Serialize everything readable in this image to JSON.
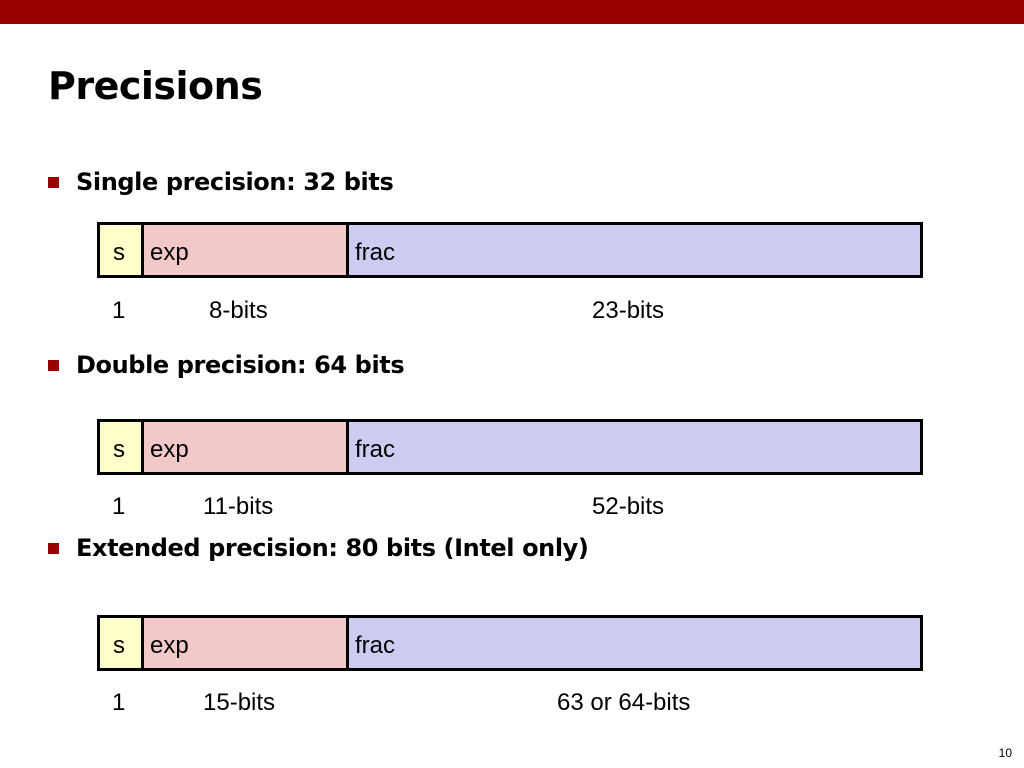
{
  "title": "Precisions",
  "sections": [
    {
      "heading": "Single precision: 32 bits",
      "fields": {
        "s": "s",
        "exp": "exp",
        "frac": "frac"
      },
      "widths": {
        "s": "1",
        "exp": "8-bits",
        "frac": "23-bits"
      }
    },
    {
      "heading": "Double precision: 64 bits",
      "fields": {
        "s": "s",
        "exp": "exp",
        "frac": "frac"
      },
      "widths": {
        "s": "1",
        "exp": "11-bits",
        "frac": "52-bits"
      }
    },
    {
      "heading": "Extended precision: 80 bits (Intel only)",
      "fields": {
        "s": "s",
        "exp": "exp",
        "frac": "frac"
      },
      "widths": {
        "s": "1",
        "exp": "15-bits",
        "frac": "63 or 64-bits"
      }
    }
  ],
  "page_number": "10",
  "colors": {
    "accent": "#990000",
    "sign_field": "#ffffcc",
    "exp_field": "#f2c8c8",
    "frac_field": "#ccccf2"
  }
}
